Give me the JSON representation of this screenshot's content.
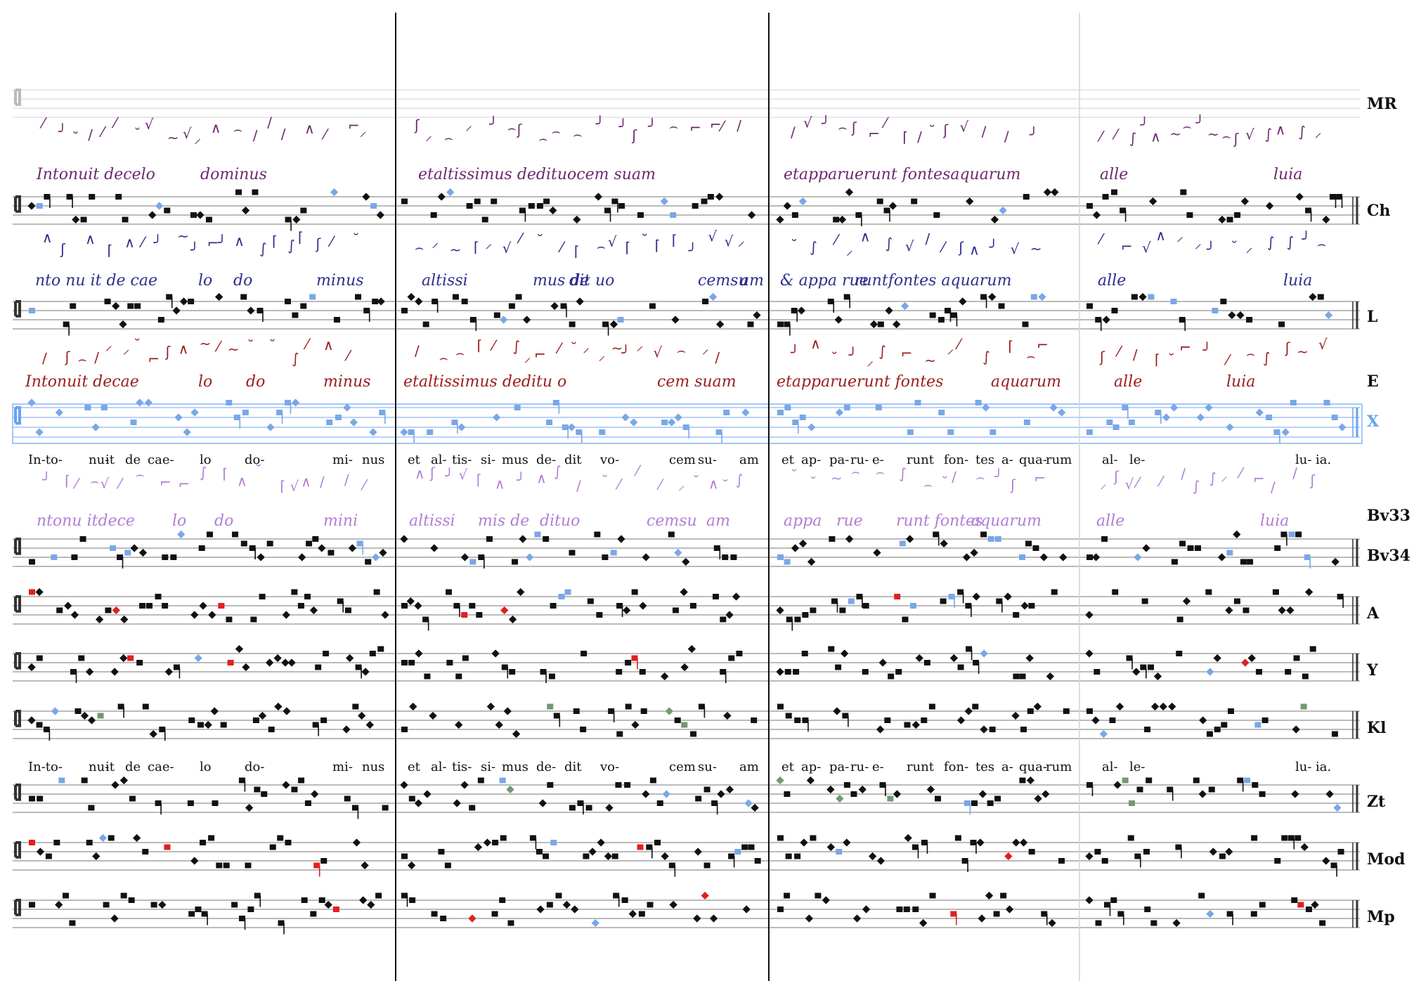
{
  "colors": {
    "note": "#111111",
    "blue_note": "#7aa7e6",
    "red_note": "#e02020",
    "green_note": "#6f9a72",
    "ms_ch": "#6b2a6f",
    "ms_l": "#2e2f8a",
    "ms_e": "#9b1d1d",
    "ms_bv33": "#b07fd6",
    "staff_x": "#6aa2f0"
  },
  "sigla": [
    "MR",
    "Ch",
    "L",
    "E",
    "X",
    "Bv33",
    "Bv34",
    "A",
    "Y",
    "Kl",
    "Zt",
    "Mod",
    "Mp"
  ],
  "lyrics_line_1": {
    "sec1": [
      "In-to-",
      "nu-",
      "it",
      "de",
      "cae-",
      "lo",
      "do-",
      "mi-",
      "nus"
    ],
    "sec2": [
      "et",
      "al-",
      "tis-",
      "si-",
      "mus",
      "de-",
      "dit",
      "vo-",
      "cem",
      "su-",
      "am"
    ],
    "sec3": [
      "et",
      "ap-",
      "pa-",
      "ru-",
      "e-",
      "runt",
      "fon-",
      "tes",
      "a-",
      "qua-",
      "rum"
    ],
    "sec4": [
      "al-",
      "le-",
      "lu-",
      "ia."
    ]
  },
  "lyrics_line_2": {
    "sec1": [
      "In-to-",
      "nu-",
      "it",
      "de",
      "cae-",
      "lo",
      "do-",
      "mi-",
      "nus"
    ],
    "sec2": [
      "et",
      "al-",
      "tis-",
      "si-",
      "mus",
      "de-",
      "dit",
      "vo-",
      "cem",
      "su-",
      "am"
    ],
    "sec3": [
      "et",
      "ap-",
      "pa-",
      "ru-",
      "e-",
      "runt",
      "fon-",
      "tes",
      "a-",
      "qua-",
      "rum"
    ],
    "sec4": [
      "al-",
      "le-",
      "lu-",
      "ia."
    ]
  },
  "manuscript_text": {
    "ch": [
      "Intonuit decelo",
      "dominus",
      "etaltissimus dedituocem suam",
      "etapparuerunt fontesaquarum",
      "alle",
      "luia"
    ],
    "l": [
      "nto nu it de cae",
      "lo",
      "do",
      "minus",
      "altissi",
      "mus de",
      "dit uo",
      "cemsu",
      "am",
      "& appa rue",
      "runtfontes aquarum",
      "alle",
      "luia"
    ],
    "e": [
      "Intonuit decae",
      "lo",
      "do",
      "minus",
      "etaltissimus deditu o",
      "cem suam",
      "etapparuerunt fontes",
      "aquarum",
      "alle",
      "luia"
    ],
    "bv33": [
      "ntonu itdece",
      "lo",
      "do",
      "mini",
      "altissi",
      "mis de",
      "dituo",
      "cemsu",
      "am",
      "appa",
      "rue",
      "runt fontes",
      "aquarum",
      "alle",
      "luia"
    ]
  }
}
